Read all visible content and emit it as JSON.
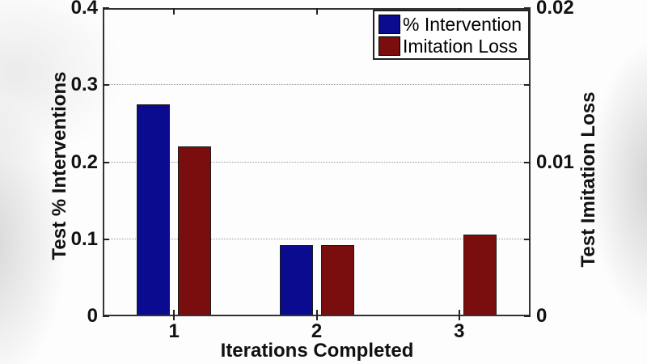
{
  "figure": {
    "background_color": "#ffffff",
    "frame_style": "upscaled video frame with soft gray blur at left and right edges"
  },
  "chart_data": {
    "type": "bar",
    "title": "",
    "xlabel": "Iterations Completed",
    "ylabel_left": "Test % Interventions",
    "ylabel_right": "Test Imitation Loss",
    "categories": [
      "1",
      "2",
      "3"
    ],
    "category_values": [
      1,
      2,
      3
    ],
    "xlim": [
      0.5,
      3.5
    ],
    "series": [
      {
        "name": "% Intervention",
        "axis": "left",
        "color": "#0B0B8F",
        "values": [
          0.275,
          0.092,
          0
        ]
      },
      {
        "name": "Imitation Loss",
        "axis": "right",
        "color": "#7A0D0D",
        "values": [
          0.011,
          0.0046,
          0.0053
        ]
      }
    ],
    "left_axis": {
      "lim": [
        0,
        0.4
      ],
      "ticks": [
        0,
        0.1,
        0.2,
        0.3,
        0.4
      ],
      "tick_labels": [
        "0",
        "0.1",
        "0.2",
        "0.3",
        "0.4"
      ]
    },
    "right_axis": {
      "lim": [
        0,
        0.02
      ],
      "ticks": [
        0,
        0.01,
        0.02
      ],
      "tick_labels": [
        "0",
        "0.01",
        "0.02"
      ]
    },
    "grid": "horizontal dotted lines at left-axis ticks 0.1, 0.2, 0.3",
    "legend_position": "top-right inside plot"
  },
  "legend": {
    "items": [
      {
        "label": "% Intervention",
        "color": "#0B0B8F"
      },
      {
        "label": "Imitation Loss",
        "color": "#7A0D0D"
      }
    ]
  }
}
